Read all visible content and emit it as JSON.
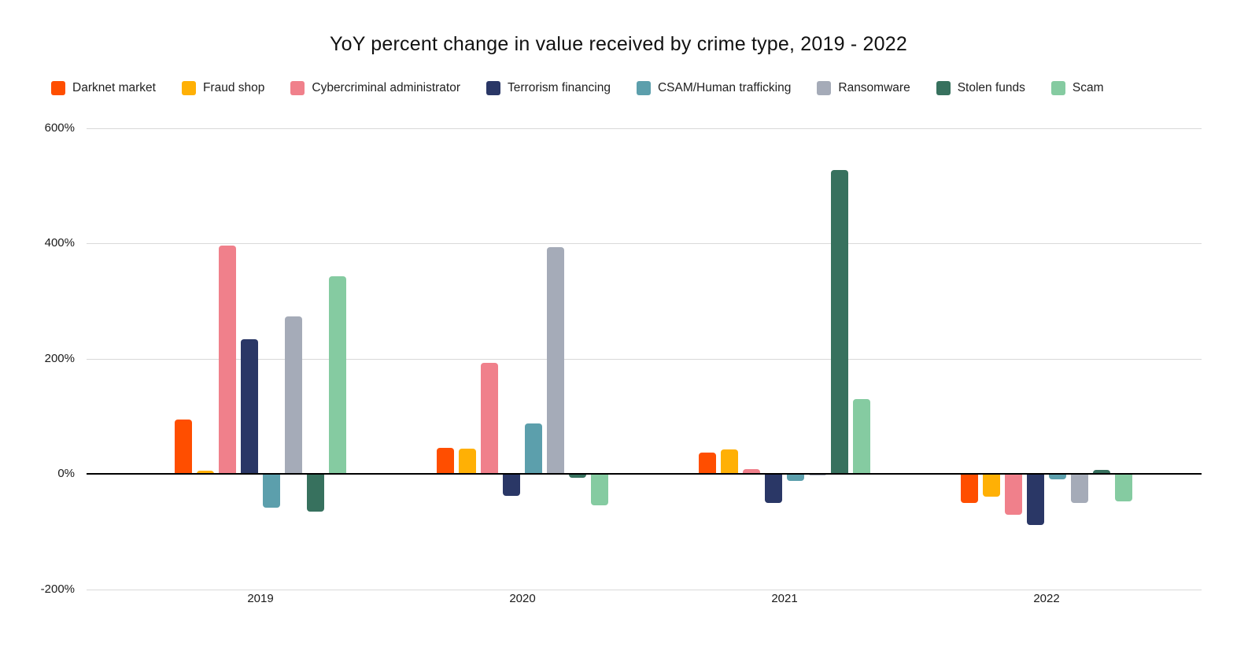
{
  "title": "YoY percent change in value received by crime type, 2019 - 2022",
  "chart_data": {
    "type": "bar",
    "title": "YoY percent change in value received by crime type, 2019 - 2022",
    "categories": [
      "2019",
      "2020",
      "2021",
      "2022"
    ],
    "series": [
      {
        "name": "Darknet market",
        "color": "#FF4E00",
        "values": [
          95,
          45,
          37,
          -50
        ]
      },
      {
        "name": "Fraud shop",
        "color": "#FFB005",
        "values": [
          5,
          44,
          42,
          -40
        ]
      },
      {
        "name": "Cybercriminal administrator",
        "color": "#F0808B",
        "values": [
          397,
          193,
          8,
          -71
        ]
      },
      {
        "name": "Terrorism financing",
        "color": "#2A3766",
        "values": [
          234,
          -38,
          -50,
          -89
        ]
      },
      {
        "name": "CSAM/Human trafficking",
        "color": "#5C9FAC",
        "values": [
          -59,
          87,
          -12,
          -10
        ]
      },
      {
        "name": "Ransomware",
        "color": "#A5ABB8",
        "values": [
          273,
          393,
          -2,
          -50
        ]
      },
      {
        "name": "Stolen funds",
        "color": "#37715E",
        "values": [
          -66,
          -6,
          527,
          7
        ]
      },
      {
        "name": "Scam",
        "color": "#85CBA1",
        "values": [
          343,
          -55,
          130,
          -47
        ]
      }
    ],
    "y_ticks": [
      {
        "label": "600%",
        "value": 600
      },
      {
        "label": "400%",
        "value": 400
      },
      {
        "label": "200%",
        "value": 200
      },
      {
        "label": "0%",
        "value": 0
      },
      {
        "label": "-200%",
        "value": -200
      }
    ],
    "ylim": [
      -200,
      600
    ],
    "xlabel": "",
    "ylabel": "",
    "grid": true,
    "legend_position": "top"
  },
  "colors": {
    "gridline": "#d9d9d9",
    "zero_axis": "#000000",
    "tick_text": "#1a1a1a",
    "title_text": "#111111"
  }
}
